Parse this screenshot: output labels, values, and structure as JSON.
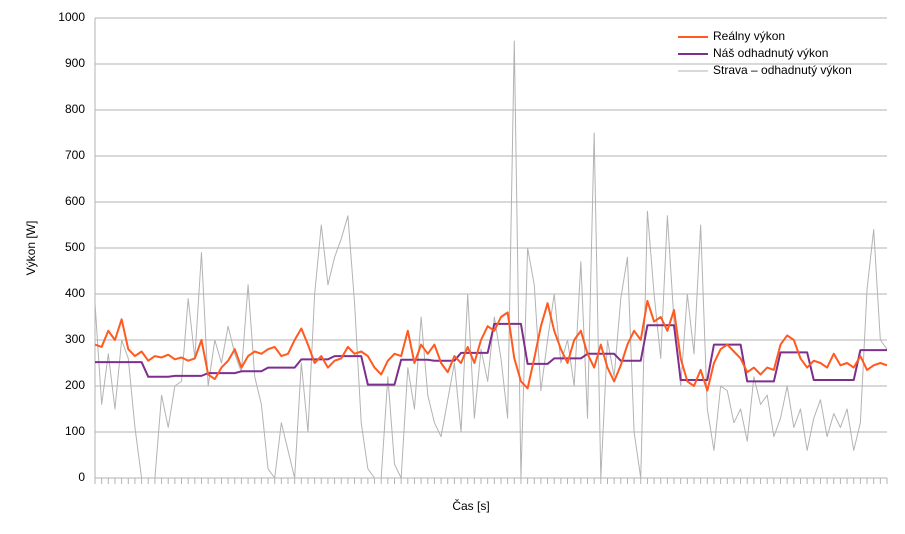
{
  "chart_data": {
    "type": "line",
    "xlabel": "Čas [s]",
    "ylabel": "Výkon [W]",
    "categories": [
      null,
      null,
      null,
      null,
      null,
      null,
      null,
      null,
      null,
      null,
      null,
      null,
      null,
      null,
      null,
      null,
      null,
      null,
      null,
      null,
      null,
      null,
      null,
      null,
      null,
      null,
      null,
      null,
      null,
      null,
      null,
      null,
      null,
      null,
      null,
      null,
      null,
      null,
      null,
      null,
      null,
      null,
      null,
      null,
      null,
      null,
      null,
      null,
      null,
      null,
      null,
      null,
      null,
      null,
      null,
      null,
      null,
      null,
      null,
      null,
      null,
      null,
      null,
      null,
      null,
      null,
      null,
      null,
      null,
      null,
      null,
      null,
      null,
      null,
      null,
      null,
      null,
      null,
      null,
      null,
      null,
      null,
      null,
      null,
      null,
      null,
      null,
      null,
      null,
      null,
      null,
      null,
      null,
      null,
      null,
      null,
      null,
      null,
      null,
      null,
      null,
      null,
      null,
      null,
      null,
      null,
      null,
      null,
      null,
      null,
      null,
      null,
      null,
      null,
      null,
      null,
      null,
      null,
      null,
      null
    ],
    "series": [
      {
        "name": "Reálny výkon",
        "color": "#ff5a1f",
        "width": 2,
        "values": [
          290,
          285,
          320,
          300,
          345,
          280,
          265,
          275,
          255,
          265,
          262,
          268,
          258,
          262,
          255,
          260,
          300,
          225,
          215,
          240,
          255,
          280,
          240,
          265,
          275,
          270,
          280,
          285,
          265,
          270,
          300,
          325,
          290,
          250,
          265,
          240,
          255,
          260,
          285,
          270,
          275,
          265,
          240,
          225,
          255,
          270,
          265,
          320,
          250,
          290,
          270,
          290,
          250,
          230,
          265,
          250,
          285,
          250,
          300,
          330,
          320,
          350,
          360,
          260,
          210,
          195,
          260,
          330,
          380,
          320,
          280,
          250,
          300,
          320,
          270,
          240,
          290,
          240,
          210,
          245,
          290,
          320,
          300,
          385,
          340,
          350,
          320,
          365,
          260,
          210,
          200,
          235,
          190,
          250,
          280,
          290,
          275,
          260,
          230,
          240,
          225,
          240,
          235,
          290,
          310,
          300,
          260,
          240,
          255,
          250,
          240,
          270,
          245,
          250,
          240,
          265,
          235,
          245,
          250,
          245
        ]
      },
      {
        "name": "Náš odhadnutý výkon",
        "color": "#7e2f8e",
        "width": 2,
        "values": [
          252,
          252,
          252,
          252,
          252,
          252,
          252,
          252,
          220,
          220,
          220,
          220,
          222,
          222,
          222,
          222,
          222,
          228,
          228,
          228,
          228,
          228,
          232,
          232,
          232,
          232,
          240,
          240,
          240,
          240,
          240,
          258,
          258,
          258,
          258,
          258,
          265,
          265,
          265,
          265,
          265,
          203,
          203,
          203,
          203,
          203,
          257,
          257,
          257,
          257,
          257,
          255,
          255,
          255,
          255,
          272,
          272,
          272,
          272,
          272,
          335,
          335,
          335,
          335,
          335,
          248,
          248,
          248,
          248,
          260,
          260,
          260,
          260,
          260,
          270,
          270,
          270,
          270,
          270,
          255,
          255,
          255,
          255,
          332,
          332,
          332,
          332,
          332,
          213,
          213,
          213,
          213,
          213,
          290,
          290,
          290,
          290,
          290,
          210,
          210,
          210,
          210,
          210,
          273,
          273,
          273,
          273,
          273,
          213,
          213,
          213,
          213,
          213,
          213,
          213,
          278,
          278,
          278,
          278,
          278
        ]
      },
      {
        "name": "Strava – odhadnutý výkon",
        "color": "#b3b3b3",
        "width": 1,
        "values": [
          380,
          160,
          270,
          150,
          300,
          260,
          110,
          0,
          0,
          0,
          180,
          110,
          200,
          210,
          390,
          260,
          490,
          200,
          300,
          250,
          330,
          270,
          230,
          420,
          220,
          160,
          20,
          0,
          120,
          60,
          0,
          250,
          100,
          400,
          550,
          420,
          480,
          520,
          570,
          380,
          120,
          20,
          0,
          0,
          220,
          30,
          0,
          240,
          150,
          350,
          180,
          120,
          90,
          170,
          250,
          100,
          400,
          130,
          280,
          210,
          350,
          260,
          130,
          950,
          0,
          500,
          420,
          190,
          300,
          400,
          250,
          300,
          200,
          470,
          130,
          750,
          0,
          300,
          220,
          390,
          480,
          100,
          0,
          580,
          400,
          260,
          570,
          340,
          200,
          400,
          270,
          550,
          150,
          60,
          200,
          190,
          120,
          150,
          80,
          220,
          160,
          180,
          90,
          130,
          200,
          110,
          150,
          60,
          130,
          170,
          90,
          140,
          110,
          150,
          60,
          120,
          410,
          540,
          300,
          280
        ]
      }
    ],
    "ylim": [
      0,
      1000
    ],
    "yticks": [
      0,
      100,
      200,
      300,
      400,
      500,
      600,
      700,
      800,
      900,
      1000
    ],
    "grid": true,
    "legend": "top-right"
  }
}
